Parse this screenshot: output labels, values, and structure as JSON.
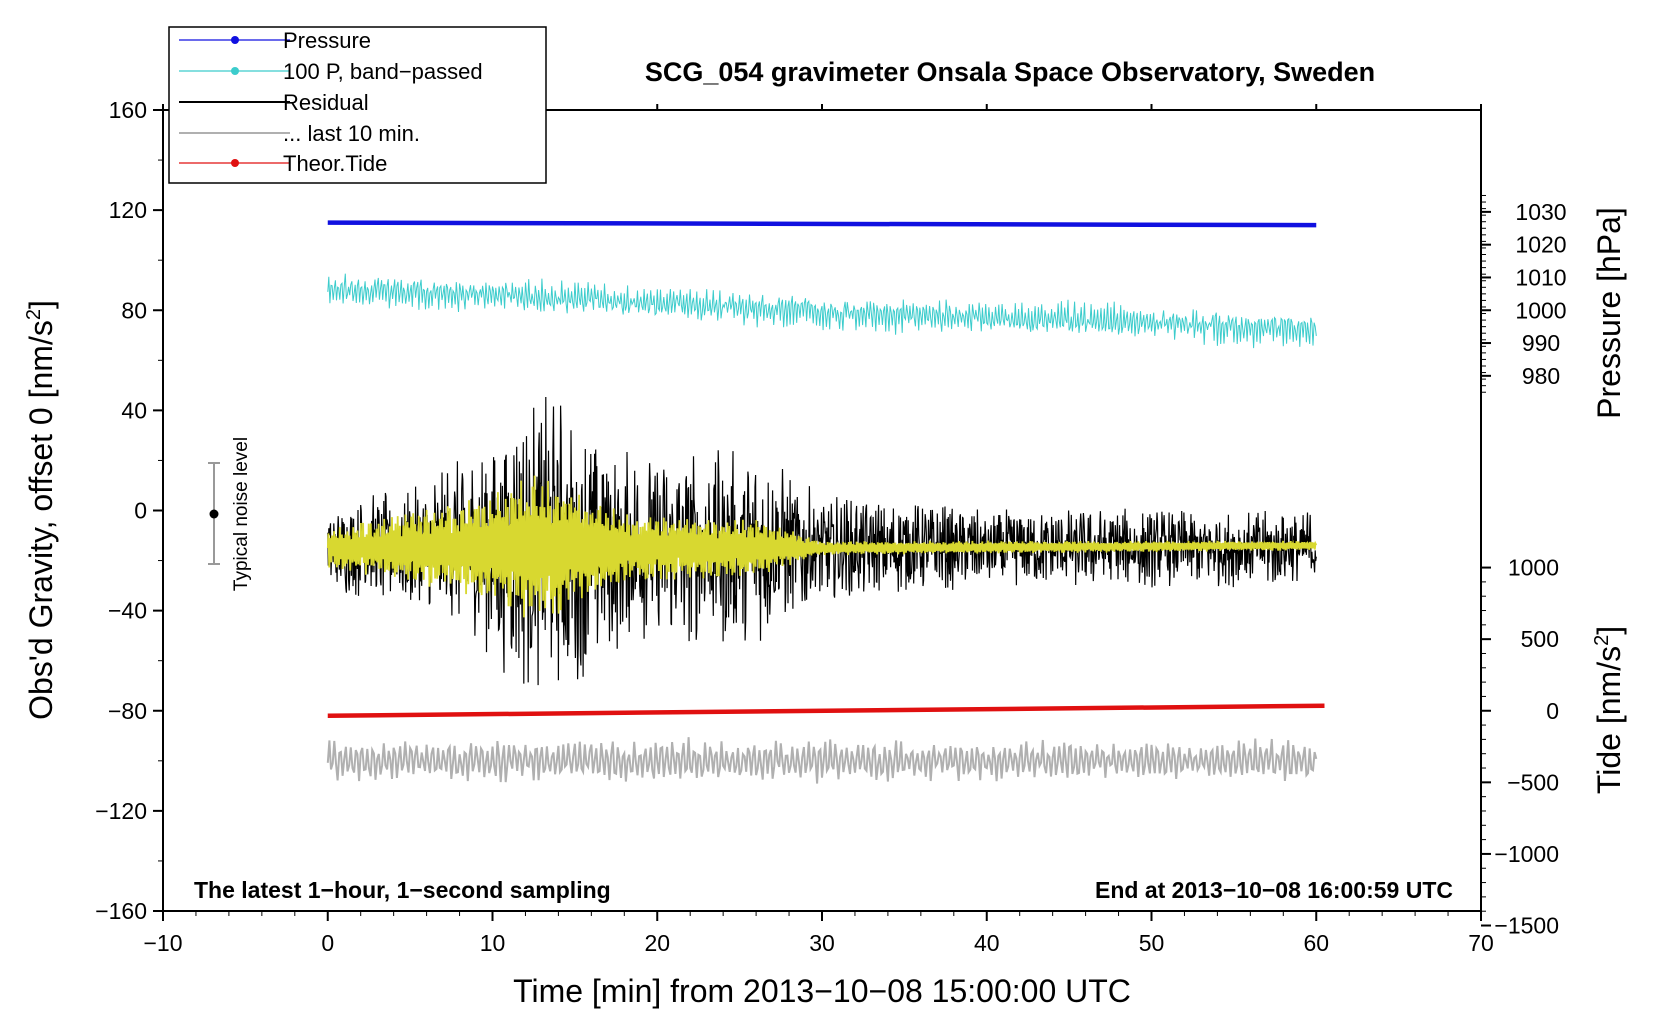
{
  "chart_data": {
    "type": "line",
    "title": "SCG_054 gravimeter Onsala Space Observatory, Sweden",
    "xlabel": "Time [min] from 2013−10−08 15:00:00 UTC",
    "ylabel_left": "Obs'd Gravity, offset 0 [nm/s",
    "ylabel_left_sup": "2",
    "ylabel_left_end": "]",
    "ylabel_pressure": "Pressure [hPa]",
    "ylabel_tide": "Tide [nm/s",
    "ylabel_tide_sup": "2",
    "ylabel_tide_end": "]",
    "xlim": [
      -10,
      70
    ],
    "ylim_left": [
      -160,
      160
    ],
    "x_ticks": [
      -10,
      0,
      10,
      20,
      30,
      40,
      50,
      60,
      70
    ],
    "x_tick_labels": [
      "−10",
      "0",
      "10",
      "20",
      "30",
      "40",
      "50",
      "60",
      "70"
    ],
    "y_ticks_left": [
      160,
      120,
      80,
      40,
      0,
      -40,
      -80,
      -120,
      -160
    ],
    "y_tick_labels_left": [
      "160",
      "120",
      "80",
      "40",
      "0",
      "−40",
      "−80",
      "−120",
      "−160"
    ],
    "pressure_ticks": [
      1030,
      1020,
      1010,
      1000,
      990,
      980
    ],
    "pressure_tick_labels": [
      "1030",
      "1020",
      "1010",
      "1000",
      "990",
      "980"
    ],
    "tide_ticks": [
      1000,
      500,
      0,
      -500,
      -1000,
      -1500
    ],
    "tide_tick_labels": [
      "1000",
      "500",
      "0",
      "−500",
      "−1000",
      "−1500"
    ],
    "note_left": "The latest 1−hour, 1−second sampling",
    "note_right": "End at 2013−10−08 16:00:59 UTC",
    "noise_label": "Typical noise level",
    "noise_bar": {
      "x": -7,
      "center": 0,
      "low": -20,
      "high": 20
    },
    "legend": [
      {
        "label": "Pressure",
        "color": "#1010e0",
        "marker": true
      },
      {
        "label": "100 P, band−passed",
        "color": "#3ccccc",
        "marker": true
      },
      {
        "label": "Residual",
        "color": "#000000",
        "marker": false
      },
      {
        "label": "... last 10 min.",
        "color": "#b0b0b0",
        "marker": false
      },
      {
        "label": "Theor.Tide",
        "color": "#e01010",
        "marker": true
      }
    ],
    "series": [
      {
        "name": "Pressure",
        "color": "#1010e0",
        "axis": "left",
        "x": [
          0,
          60
        ],
        "values": [
          115,
          114
        ],
        "style": "thick"
      },
      {
        "name": "100 P, band−passed",
        "color": "#3ccccc",
        "axis": "left",
        "x": [
          0,
          10,
          20,
          30,
          40,
          50,
          60
        ],
        "values": [
          88,
          86,
          83,
          79,
          77,
          75,
          72
        ],
        "noise_amplitude": 9
      },
      {
        "name": "Residual",
        "color": "#000000",
        "axis": "left",
        "x": [
          0,
          5,
          10,
          12,
          14,
          18,
          26,
          30,
          40,
          50,
          60
        ],
        "values": [
          -15,
          -15,
          -15,
          -15,
          -15,
          -15,
          -15,
          -15,
          -15,
          -15,
          -15
        ],
        "envelope": [
          18,
          25,
          45,
          60,
          62,
          40,
          40,
          22,
          16,
          16,
          16
        ]
      },
      {
        "name": "Residual smoothed",
        "color": "#d8d830",
        "axis": "left",
        "x": [
          0,
          10,
          12,
          14,
          18,
          26,
          30,
          60
        ],
        "values": [
          -15,
          -15,
          -15,
          -15,
          -15,
          -15,
          -15,
          -14
        ],
        "envelope": [
          8,
          22,
          30,
          28,
          14,
          12,
          3,
          2
        ]
      },
      {
        "name": "Theor.Tide",
        "color": "#e01010",
        "axis": "left",
        "x": [
          0,
          60.5
        ],
        "values": [
          -82,
          -78
        ],
        "style": "thick"
      },
      {
        "name": "... last 10 min.",
        "color": "#b0b0b0",
        "axis": "left",
        "x": [
          0,
          60
        ],
        "values": [
          -100,
          -100
        ],
        "envelope": [
          10,
          10
        ]
      }
    ]
  }
}
